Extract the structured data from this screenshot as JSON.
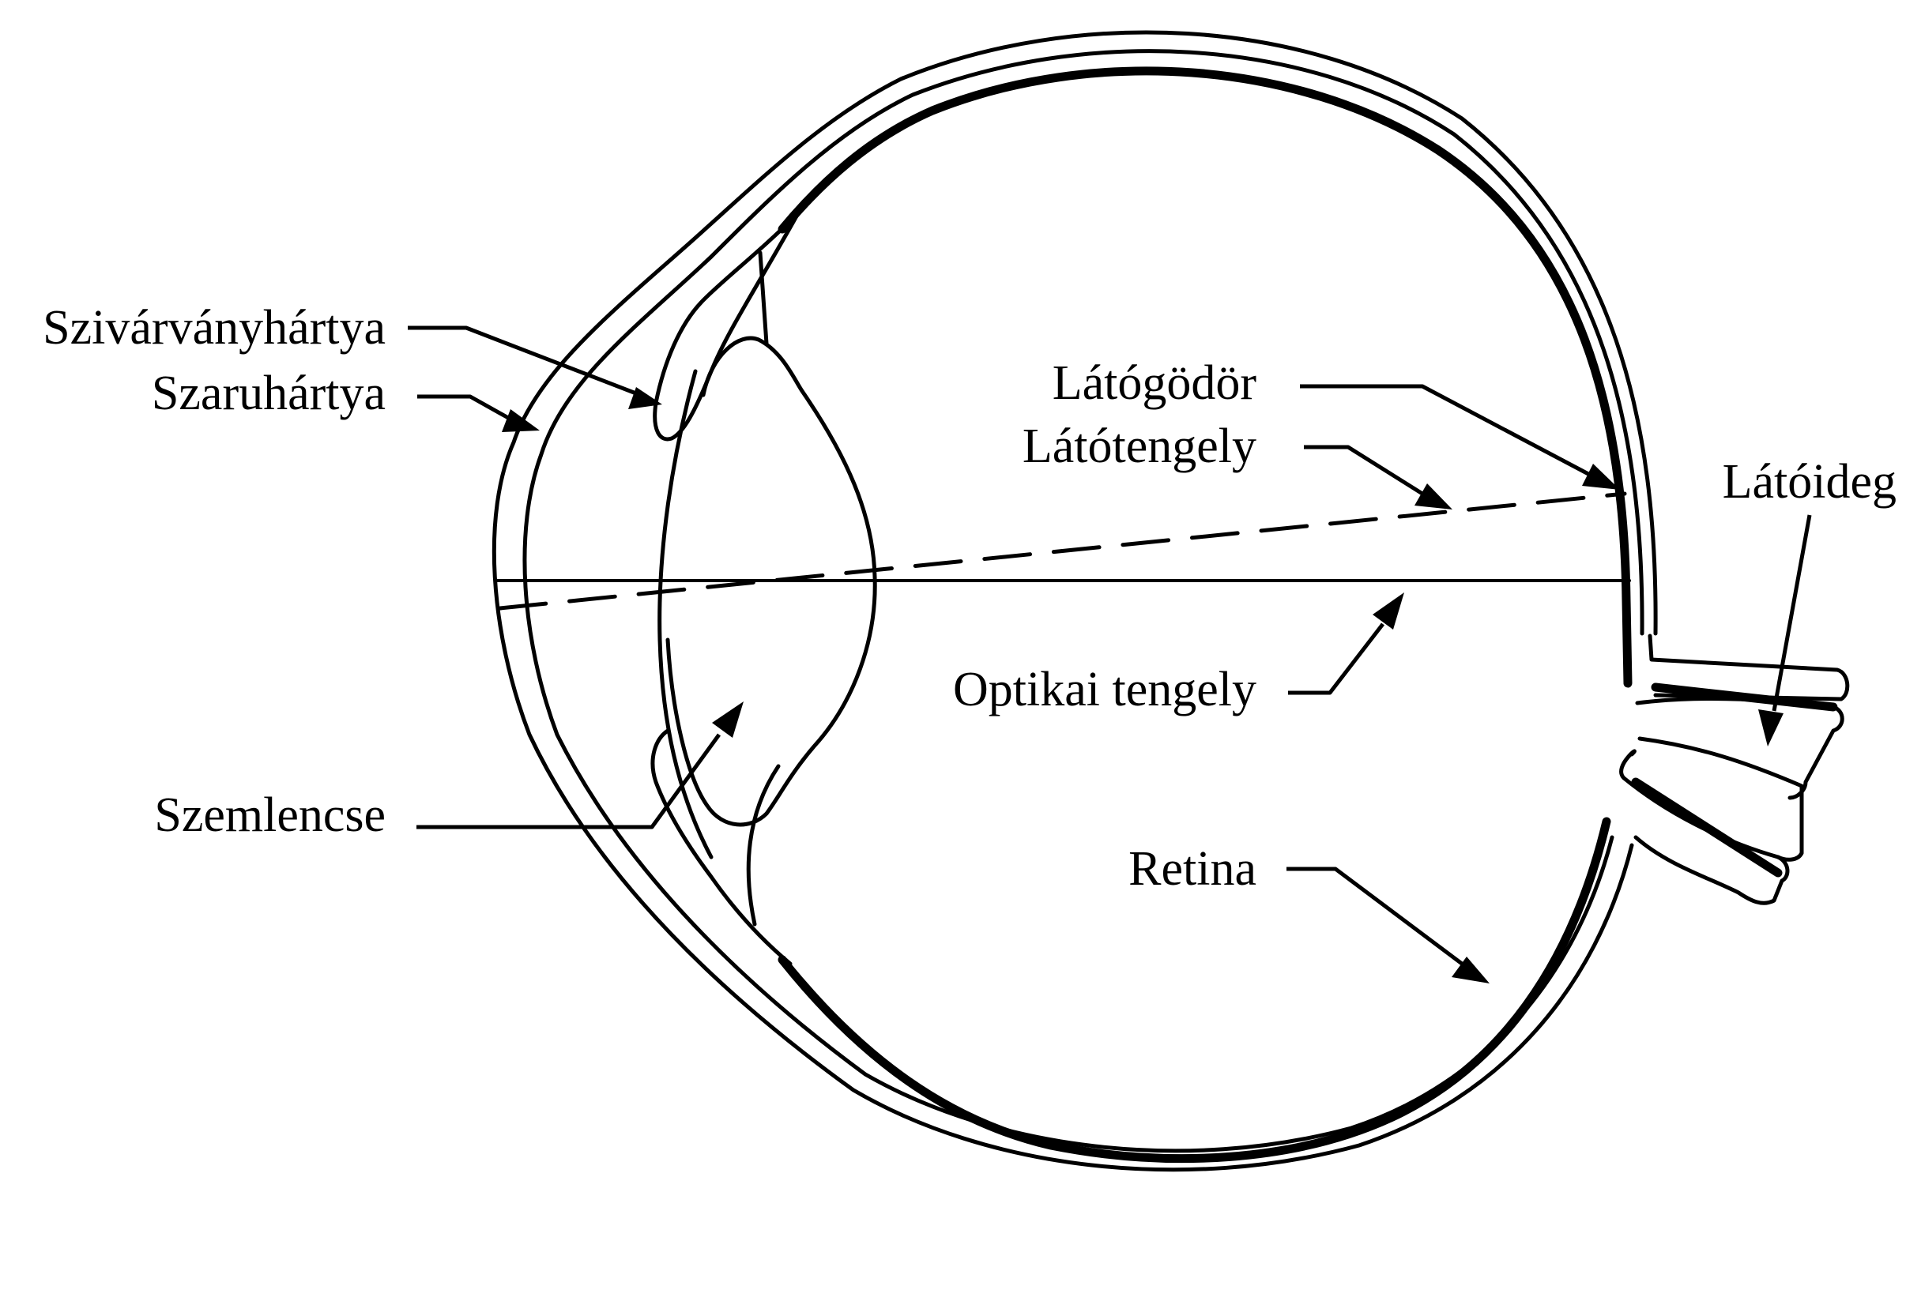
{
  "labels": {
    "iris": "Szivárványhártya",
    "cornea": "Szaruhártya",
    "lens": "Szemlencse",
    "fovea": "Látógödör",
    "visual_axis": "Látótengely",
    "optic_nerve": "Látóideg",
    "optical_axis": "Optikai tengely",
    "retina": "Retina"
  }
}
